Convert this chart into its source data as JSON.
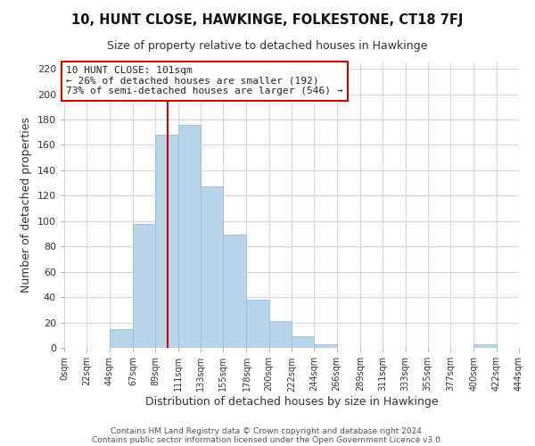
{
  "title": "10, HUNT CLOSE, HAWKINGE, FOLKESTONE, CT18 7FJ",
  "subtitle": "Size of property relative to detached houses in Hawkinge",
  "xlabel": "Distribution of detached houses by size in Hawkinge",
  "ylabel": "Number of detached properties",
  "bar_color": "#b8d4e8",
  "bar_edge_color": "#9bbcd8",
  "bin_edges": [
    0,
    22,
    44,
    67,
    89,
    111,
    133,
    155,
    178,
    200,
    222,
    244,
    266,
    289,
    311,
    333,
    355,
    377,
    400,
    422,
    444
  ],
  "bar_heights": [
    0,
    0,
    15,
    98,
    168,
    176,
    127,
    89,
    38,
    21,
    9,
    3,
    0,
    0,
    0,
    0,
    0,
    0,
    3,
    0
  ],
  "tick_labels": [
    "0sqm",
    "22sqm",
    "44sqm",
    "67sqm",
    "89sqm",
    "111sqm",
    "133sqm",
    "155sqm",
    "178sqm",
    "200sqm",
    "222sqm",
    "244sqm",
    "266sqm",
    "289sqm",
    "311sqm",
    "333sqm",
    "355sqm",
    "377sqm",
    "400sqm",
    "422sqm",
    "444sqm"
  ],
  "vline_x": 101,
  "vline_color": "#cc0000",
  "ylim": [
    0,
    225
  ],
  "yticks": [
    0,
    20,
    40,
    60,
    80,
    100,
    120,
    140,
    160,
    180,
    200,
    220
  ],
  "annotation_title": "10 HUNT CLOSE: 101sqm",
  "annotation_line1": "← 26% of detached houses are smaller (192)",
  "annotation_line2": "73% of semi-detached houses are larger (546) →",
  "footer1": "Contains HM Land Registry data © Crown copyright and database right 2024.",
  "footer2": "Contains public sector information licensed under the Open Government Licence v3.0.",
  "background_color": "#ffffff",
  "grid_color": "#d0d8e8"
}
